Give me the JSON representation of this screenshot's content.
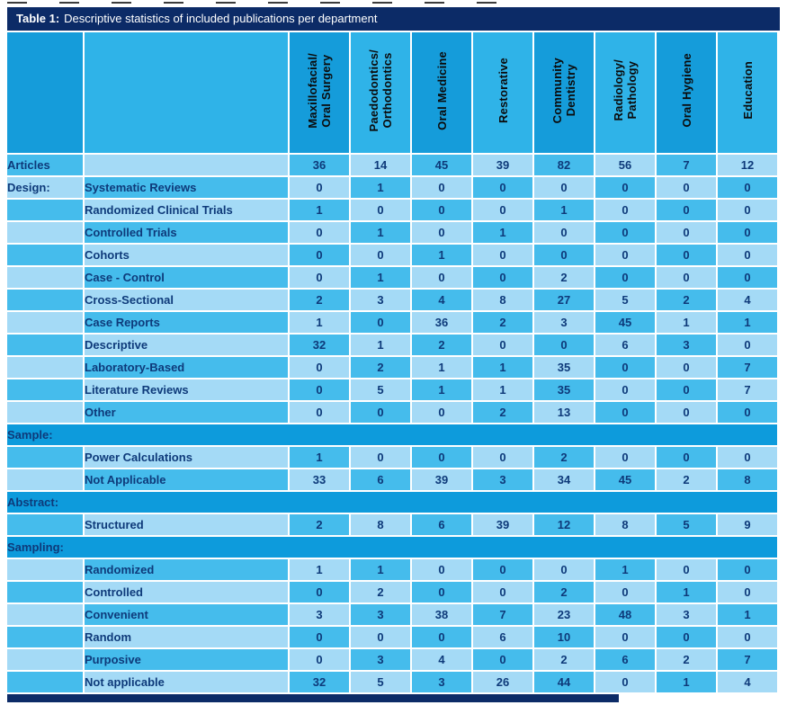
{
  "title": {
    "prefix": "Table 1:",
    "text": "Descriptive statistics of included publications per department"
  },
  "colors": {
    "title_bar": "#0c2b67",
    "header_dark": "#159cda",
    "header_light": "#2fb3e8",
    "cell_medium": "#45bcec",
    "cell_pale": "#a4daf6",
    "section_row": "#0d9bdc",
    "text_navy": "#0e3a7a",
    "header_text": "#0b0b0c"
  },
  "chart_data": {
    "type": "table",
    "title": "Table 1: Descriptive statistics of included publications per department",
    "columns": [
      {
        "label": "Maxillofacial/Oral Surgery",
        "lines": [
          "Maxillofacial/",
          "Oral Surgery"
        ]
      },
      {
        "label": "Paedodontics/Orthodontics",
        "lines": [
          "Paedodontics/",
          "Orthodontics"
        ]
      },
      {
        "label": "Oral Medicine",
        "lines": [
          "Oral Medicine"
        ]
      },
      {
        "label": "Restorative",
        "lines": [
          "Restorative"
        ]
      },
      {
        "label": "Community Dentistry",
        "lines": [
          "Community",
          "Dentistry"
        ]
      },
      {
        "label": "Radiology/Pathology",
        "lines": [
          "Radiology/",
          "Pathology"
        ]
      },
      {
        "label": "Oral Hygiene",
        "lines": [
          "Oral Hygiene"
        ]
      },
      {
        "label": "Education",
        "lines": [
          "Education"
        ]
      }
    ],
    "rows": [
      {
        "type": "data",
        "category": "Articles",
        "label": "",
        "values": [
          36,
          14,
          45,
          39,
          82,
          56,
          7,
          12
        ]
      },
      {
        "type": "data",
        "category": "Design:",
        "label": "Systematic Reviews",
        "values": [
          0,
          1,
          0,
          0,
          0,
          0,
          0,
          0
        ]
      },
      {
        "type": "data",
        "category": "",
        "label": "Randomized Clinical Trials",
        "values": [
          1,
          0,
          0,
          0,
          1,
          0,
          0,
          0
        ]
      },
      {
        "type": "data",
        "category": "",
        "label": "Controlled Trials",
        "values": [
          0,
          1,
          0,
          1,
          0,
          0,
          0,
          0
        ]
      },
      {
        "type": "data",
        "category": "",
        "label": "Cohorts",
        "values": [
          0,
          0,
          1,
          0,
          0,
          0,
          0,
          0
        ]
      },
      {
        "type": "data",
        "category": "",
        "label": "Case - Control",
        "values": [
          0,
          1,
          0,
          0,
          2,
          0,
          0,
          0
        ]
      },
      {
        "type": "data",
        "category": "",
        "label": "Cross-Sectional",
        "values": [
          2,
          3,
          4,
          8,
          27,
          5,
          2,
          4
        ]
      },
      {
        "type": "data",
        "category": "",
        "label": "Case Reports",
        "values": [
          1,
          0,
          36,
          2,
          3,
          45,
          1,
          1
        ]
      },
      {
        "type": "data",
        "category": "",
        "label": "Descriptive",
        "values": [
          32,
          1,
          2,
          0,
          0,
          6,
          3,
          0
        ]
      },
      {
        "type": "data",
        "category": "",
        "label": "Laboratory-Based",
        "values": [
          0,
          2,
          1,
          1,
          35,
          0,
          0,
          7
        ]
      },
      {
        "type": "data",
        "category": "",
        "label": "Literature Reviews",
        "values": [
          0,
          5,
          1,
          1,
          35,
          0,
          0,
          7
        ]
      },
      {
        "type": "data",
        "category": "",
        "label": "Other",
        "values": [
          0,
          0,
          0,
          2,
          13,
          0,
          0,
          0
        ]
      },
      {
        "type": "section",
        "category": "Sample:",
        "label": "",
        "values": []
      },
      {
        "type": "data",
        "category": "",
        "label": "Power Calculations",
        "values": [
          1,
          0,
          0,
          0,
          2,
          0,
          0,
          0
        ]
      },
      {
        "type": "data",
        "category": "",
        "label": "Not Applicable",
        "values": [
          33,
          6,
          39,
          3,
          34,
          45,
          2,
          8
        ]
      },
      {
        "type": "section",
        "category": "Abstract:",
        "label": "",
        "values": []
      },
      {
        "type": "data",
        "category": "",
        "label": "Structured",
        "values": [
          2,
          8,
          6,
          39,
          12,
          8,
          5,
          9
        ]
      },
      {
        "type": "section",
        "category": "Sampling:",
        "label": "",
        "values": []
      },
      {
        "type": "data",
        "category": "",
        "label": "Randomized",
        "values": [
          1,
          1,
          0,
          0,
          0,
          1,
          0,
          0
        ]
      },
      {
        "type": "data",
        "category": "",
        "label": "Controlled",
        "values": [
          0,
          2,
          0,
          0,
          2,
          0,
          1,
          0
        ]
      },
      {
        "type": "data",
        "category": "",
        "label": "Convenient",
        "values": [
          3,
          3,
          38,
          7,
          23,
          48,
          3,
          1
        ]
      },
      {
        "type": "data",
        "category": "",
        "label": "Random",
        "values": [
          0,
          0,
          0,
          6,
          10,
          0,
          0,
          0
        ]
      },
      {
        "type": "data",
        "category": "",
        "label": "Purposive",
        "values": [
          0,
          3,
          4,
          0,
          2,
          6,
          2,
          7
        ]
      },
      {
        "type": "data",
        "category": "",
        "label": "Not applicable",
        "values": [
          32,
          5,
          3,
          26,
          44,
          0,
          1,
          4
        ]
      }
    ]
  }
}
